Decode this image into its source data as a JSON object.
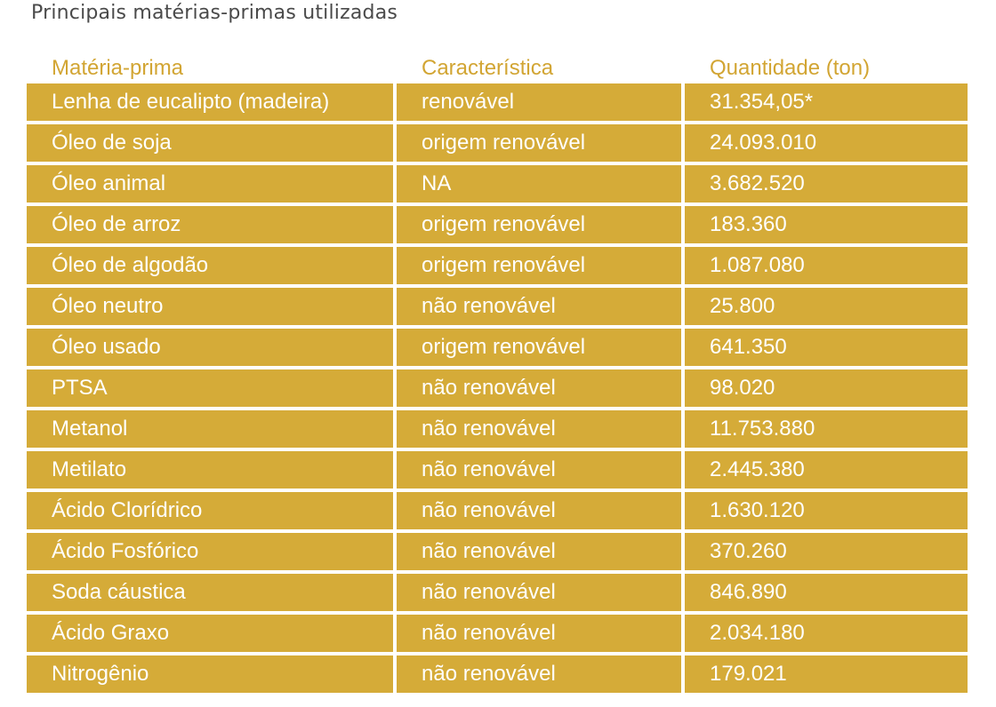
{
  "title": "Principais matérias-primas utilizadas",
  "colors": {
    "accent": "#d5ab38",
    "header_text": "#d2a533",
    "title_text": "#4a4a4a",
    "cell_text": "#ffffff"
  },
  "table": {
    "headers": [
      "Matéria-prima",
      "Característica",
      "Quantidade (ton)"
    ],
    "rows": [
      [
        "Lenha de eucalipto (madeira)",
        "renovável",
        "31.354,05*"
      ],
      [
        "Óleo de soja",
        "origem renovável",
        "24.093.010"
      ],
      [
        "Óleo animal",
        "NA",
        "3.682.520"
      ],
      [
        "Óleo de arroz",
        "origem renovável",
        "183.360"
      ],
      [
        "Óleo de algodão",
        "origem renovável",
        "1.087.080"
      ],
      [
        "Óleo neutro",
        "não renovável",
        "25.800"
      ],
      [
        "Óleo usado",
        "origem renovável",
        "641.350"
      ],
      [
        "PTSA",
        "não renovável",
        "98.020"
      ],
      [
        "Metanol",
        "não renovável",
        "11.753.880"
      ],
      [
        "Metilato",
        "não renovável",
        "2.445.380"
      ],
      [
        "Ácido Clorídrico",
        "não renovável",
        "1.630.120"
      ],
      [
        "Ácido Fosfórico",
        "não renovável",
        "370.260"
      ],
      [
        "Soda cáustica",
        "não renovável",
        "846.890"
      ],
      [
        "Ácido Graxo",
        "não renovável",
        "2.034.180"
      ],
      [
        "Nitrogênio",
        "não renovável",
        "179.021"
      ]
    ]
  }
}
